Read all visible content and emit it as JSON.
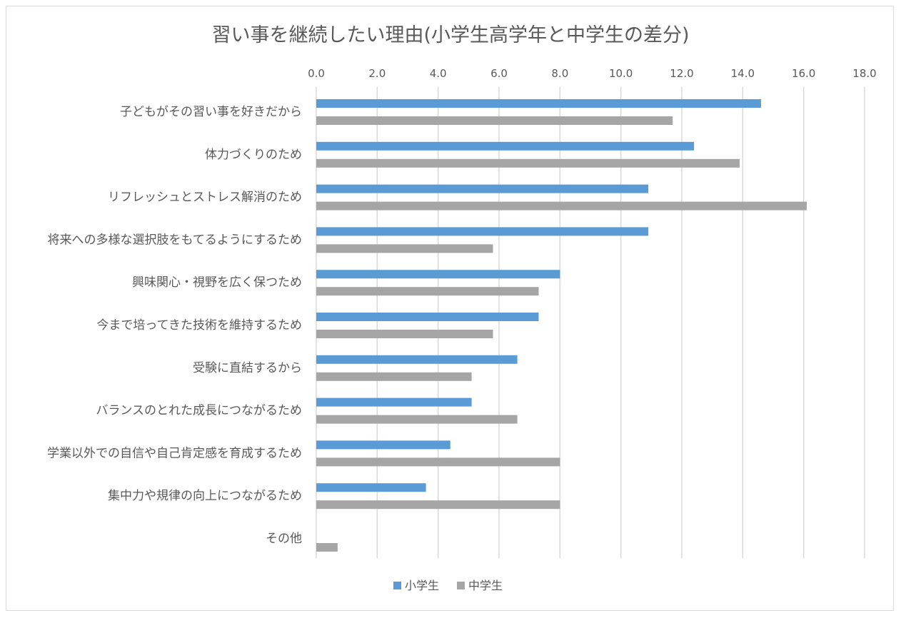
{
  "chart_data": {
    "type": "bar",
    "orientation": "horizontal",
    "title": "習い事を継続したい理由(小学生高学年と中学生の差分)",
    "xlabel": "",
    "ylabel": "",
    "xlim": [
      0,
      18
    ],
    "ticks": [
      "0.0",
      "2.0",
      "4.0",
      "6.0",
      "8.0",
      "10.0",
      "12.0",
      "14.0",
      "16.0",
      "18.0"
    ],
    "tick_values": [
      0,
      2,
      4,
      6,
      8,
      10,
      12,
      14,
      16,
      18
    ],
    "axis_position": "top",
    "grid": true,
    "legend": "bottom",
    "categories": [
      "子どもがその習い事を好きだから",
      "体力づくりのため",
      "リフレッシュとストレス解消のため",
      "将来への多様な選択肢をもてるようにするため",
      "興味関心・視野を広く保つため",
      "今まで培ってきた技術を維持するため",
      "受験に直結するから",
      "バランスのとれた成長につながるため",
      "学業以外での自信や自己肯定感を育成するため",
      "集中力や規律の向上につながるため",
      "その他"
    ],
    "series": [
      {
        "name": "小学生",
        "color": "#5b9bd5",
        "values": [
          14.6,
          12.4,
          10.9,
          10.9,
          8.0,
          7.3,
          6.6,
          5.1,
          4.4,
          3.6,
          0.0
        ]
      },
      {
        "name": "中学生",
        "color": "#a5a5a5",
        "values": [
          11.7,
          13.9,
          16.1,
          5.8,
          7.3,
          5.8,
          5.1,
          6.6,
          8.0,
          8.0,
          0.7
        ]
      }
    ]
  }
}
